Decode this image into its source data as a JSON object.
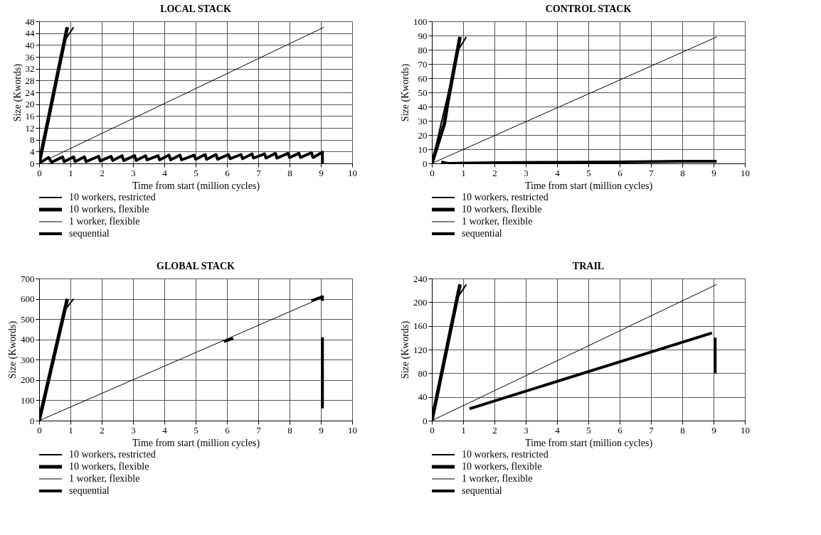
{
  "chart_data": [
    {
      "type": "line",
      "title": "LOCAL STACK",
      "xlabel": "Time from start (million cycles)",
      "ylabel": "Size (Kwords)",
      "xlim": [
        0,
        10
      ],
      "xticks": [
        0,
        1,
        2,
        3,
        4,
        5,
        6,
        7,
        8,
        9,
        10
      ],
      "ylim": [
        0,
        48
      ],
      "yticks": [
        0,
        4,
        8,
        12,
        16,
        20,
        24,
        28,
        32,
        36,
        40,
        44,
        48
      ],
      "grid": true,
      "legend": "bottom",
      "series": [
        {
          "name": "10 workers, restricted",
          "color": "#000000",
          "x": [
            0,
            0.85,
            1.1
          ],
          "values": [
            0,
            42,
            46
          ]
        },
        {
          "name": "10 workers, flexible",
          "color": "#000000",
          "x": [
            0,
            0.9
          ],
          "values": [
            0,
            46
          ]
        },
        {
          "name": "1 worker, flexible",
          "color": "#000000",
          "x": [
            0,
            9.1
          ],
          "values": [
            0,
            46
          ]
        },
        {
          "name": "sequential",
          "color": "#000000",
          "x": [
            0,
            0.3,
            0.4,
            0.75,
            0.8,
            1.1,
            1.15,
            1.45,
            1.5,
            1.9,
            1.95,
            2.3,
            2.35,
            2.65,
            2.7,
            3.05,
            3.1,
            3.4,
            3.45,
            3.8,
            3.85,
            4.15,
            4.2,
            4.5,
            4.55,
            4.95,
            5.0,
            5.3,
            5.35,
            5.65,
            5.7,
            6.05,
            6.1,
            6.45,
            6.5,
            6.8,
            6.85,
            7.2,
            7.25,
            7.55,
            7.6,
            7.95,
            8.0,
            8.3,
            8.35,
            8.7,
            8.75,
            9.05,
            9.05
          ],
          "values": [
            0,
            2.0,
            0.4,
            2.2,
            0.6,
            2.2,
            0.6,
            2.2,
            0.6,
            2.4,
            0.8,
            2.4,
            1.0,
            2.6,
            1.0,
            2.6,
            1.0,
            2.6,
            1.2,
            2.6,
            1.2,
            2.8,
            1.2,
            2.8,
            1.2,
            2.8,
            1.4,
            3.0,
            1.4,
            3.0,
            1.4,
            3.0,
            1.6,
            3.0,
            1.6,
            3.2,
            1.8,
            3.2,
            1.8,
            3.4,
            1.8,
            3.4,
            2.0,
            3.4,
            2.0,
            3.6,
            2.0,
            3.8,
            0
          ]
        }
      ]
    },
    {
      "type": "line",
      "title": "CONTROL STACK",
      "xlabel": "Time from start (million cycles)",
      "ylabel": "Size (Kwords)",
      "xlim": [
        0,
        10
      ],
      "xticks": [
        0,
        1,
        2,
        3,
        4,
        5,
        6,
        7,
        8,
        9,
        10
      ],
      "ylim": [
        0,
        100
      ],
      "yticks": [
        0,
        10,
        20,
        30,
        40,
        50,
        60,
        70,
        80,
        90,
        100
      ],
      "grid": true,
      "legend": "bottom",
      "series": [
        {
          "name": "10 workers, restricted",
          "color": "#000000",
          "x": [
            0,
            0.85,
            1.1
          ],
          "values": [
            0,
            80,
            89
          ]
        },
        {
          "name": "10 workers, flexible",
          "color": "#000000",
          "x": [
            0,
            0.4,
            0.5,
            0.9
          ],
          "values": [
            0,
            28,
            42,
            89
          ]
        },
        {
          "name": "1 worker, flexible",
          "color": "#000000",
          "x": [
            0,
            9.1
          ],
          "values": [
            0,
            89
          ]
        },
        {
          "name": "sequential",
          "color": "#000000",
          "x": [
            0.3,
            0.5,
            2,
            4,
            6,
            8,
            9.1
          ],
          "values": [
            1,
            0,
            0.5,
            0.8,
            1,
            1.5,
            1.5
          ]
        }
      ]
    },
    {
      "type": "line",
      "title": "GLOBAL STACK",
      "xlabel": "Time from start (million cycles)",
      "ylabel": "Size (Kwords)",
      "xlim": [
        0,
        10
      ],
      "xticks": [
        0,
        1,
        2,
        3,
        4,
        5,
        6,
        7,
        8,
        9,
        10
      ],
      "ylim": [
        0,
        700
      ],
      "yticks": [
        0,
        100,
        200,
        300,
        400,
        500,
        600,
        700
      ],
      "grid": true,
      "legend": "bottom",
      "series": [
        {
          "name": "10 workers, restricted",
          "color": "#000000",
          "x": [
            0,
            0.85,
            1.1
          ],
          "values": [
            0,
            550,
            600
          ]
        },
        {
          "name": "10 workers, flexible",
          "color": "#000000",
          "x": [
            0,
            0.9
          ],
          "values": [
            0,
            600
          ]
        },
        {
          "name": "1 worker, flexible",
          "color": "#000000",
          "x": [
            0,
            9.1
          ],
          "values": [
            0,
            610
          ]
        },
        {
          "name": "sequential",
          "color": "#000000",
          "x": [
            5.9,
            6.2,
            null,
            8.7,
            9.05,
            9.05,
            null,
            9.05,
            9.05
          ],
          "values": [
            390,
            405,
            null,
            590,
            610,
            590,
            null,
            410,
            60
          ]
        }
      ]
    },
    {
      "type": "line",
      "title": "TRAIL",
      "xlabel": "Time from start (million cycles)",
      "ylabel": "Size (Kwords)",
      "xlim": [
        0,
        10
      ],
      "xticks": [
        0,
        1,
        2,
        3,
        4,
        5,
        6,
        7,
        8,
        9,
        10
      ],
      "ylim": [
        0,
        240
      ],
      "yticks": [
        0,
        40,
        80,
        120,
        160,
        200,
        240
      ],
      "grid": true,
      "legend": "bottom",
      "series": [
        {
          "name": "10 workers, restricted",
          "color": "#000000",
          "x": [
            0,
            0.85,
            1.1
          ],
          "values": [
            0,
            210,
            230
          ]
        },
        {
          "name": "10 workers, flexible",
          "color": "#000000",
          "x": [
            0,
            0.9
          ],
          "values": [
            0,
            230
          ]
        },
        {
          "name": "1 worker, flexible",
          "color": "#000000",
          "x": [
            0,
            9.1
          ],
          "values": [
            0,
            230
          ]
        },
        {
          "name": "sequential",
          "color": "#000000",
          "x": [
            1.2,
            8.95,
            null,
            9.05,
            9.05
          ],
          "values": [
            20,
            148,
            null,
            140,
            80
          ]
        }
      ]
    }
  ]
}
